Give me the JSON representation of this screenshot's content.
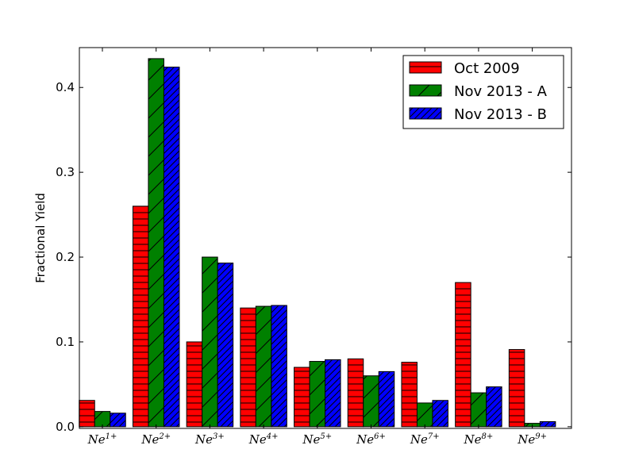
{
  "chart_data": {
    "type": "bar",
    "categories": [
      {
        "base": "Ne",
        "sup": "1+"
      },
      {
        "base": "Ne",
        "sup": "2+"
      },
      {
        "base": "Ne",
        "sup": "3+"
      },
      {
        "base": "Ne",
        "sup": "4+"
      },
      {
        "base": "Ne",
        "sup": "5+"
      },
      {
        "base": "Ne",
        "sup": "6+"
      },
      {
        "base": "Ne",
        "sup": "7+"
      },
      {
        "base": "Ne",
        "sup": "8+"
      },
      {
        "base": "Ne",
        "sup": "9+"
      }
    ],
    "series": [
      {
        "name": "Oct 2009",
        "color": "#ff0000",
        "hatch": "horizontal",
        "values": [
          0.031,
          0.26,
          0.1,
          0.14,
          0.07,
          0.08,
          0.076,
          0.17,
          0.091
        ]
      },
      {
        "name": "Nov 2013 - A",
        "color": "#008000",
        "hatch": "diagonal",
        "values": [
          0.018,
          0.434,
          0.2,
          0.142,
          0.077,
          0.06,
          0.028,
          0.04,
          0.004
        ]
      },
      {
        "name": "Nov 2013 - B",
        "color": "#0000ff",
        "hatch": "dense-diagonal",
        "values": [
          0.016,
          0.424,
          0.193,
          0.143,
          0.079,
          0.065,
          0.031,
          0.047,
          0.006
        ]
      }
    ],
    "title": "",
    "xlabel": "",
    "ylabel": "Fractional Yield",
    "ylim": [
      -0.002,
      0.447
    ],
    "yticks": [
      "0.0",
      "0.1",
      "0.2",
      "0.3",
      "0.4"
    ],
    "grid": false,
    "legend_position": "top-right"
  }
}
